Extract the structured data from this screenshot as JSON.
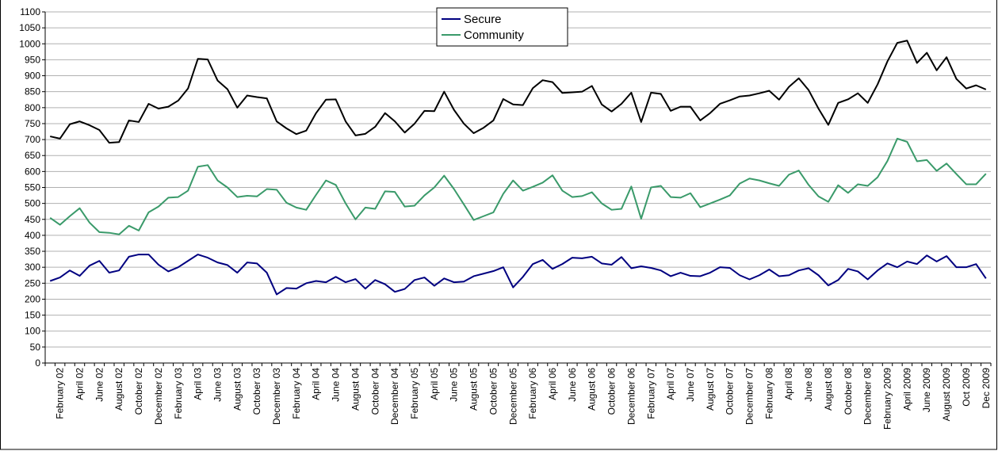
{
  "chart_data": {
    "type": "line",
    "categories": [
      null,
      "February 02",
      null,
      "April 02",
      null,
      "June 02",
      null,
      "August 02",
      null,
      "October 02",
      null,
      "December 02",
      null,
      "February 03",
      null,
      "April 03",
      null,
      "June 03",
      null,
      "August 03",
      null,
      "October 03",
      null,
      "December 03",
      null,
      "February 04",
      null,
      "April 04",
      null,
      "June 04",
      null,
      "August 04",
      null,
      "October 04",
      null,
      "December 04",
      null,
      "February 05",
      null,
      "April 05",
      null,
      "June 05",
      null,
      "August 05",
      null,
      "October 05",
      null,
      "December 05",
      null,
      "February 06",
      null,
      "April 06",
      null,
      "June 06",
      null,
      "August 06",
      null,
      "October 06",
      null,
      "December 06",
      null,
      "February 07",
      null,
      "April 07",
      null,
      "June 07",
      null,
      "August 07",
      null,
      "October 07",
      null,
      "December 07",
      null,
      "February 08",
      null,
      "April 08",
      null,
      "June 08",
      null,
      "August 08",
      null,
      "October 08",
      null,
      "December 08",
      null,
      "February 2009",
      null,
      "April 2009",
      null,
      "June 2009",
      null,
      "August 2009",
      null,
      "Oct 2009",
      null,
      "Dec 2009"
    ],
    "series": [
      {
        "color": "#000000",
        "values": [
          710,
          703,
          748,
          757,
          745,
          730,
          690,
          692,
          760,
          755,
          812,
          797,
          803,
          822,
          860,
          953,
          951,
          885,
          858,
          800,
          838,
          833,
          829,
          757,
          735,
          717,
          728,
          783,
          825,
          826,
          757,
          713,
          718,
          740,
          783,
          757,
          722,
          750,
          790,
          789,
          850,
          793,
          750,
          720,
          737,
          760,
          827,
          810,
          808,
          861,
          886,
          880,
          846,
          848,
          850,
          868,
          810,
          788,
          812,
          847,
          755,
          847,
          843,
          790,
          803,
          803,
          760,
          783,
          812,
          823,
          835,
          838,
          845,
          853,
          825,
          865,
          892,
          855,
          797,
          746,
          815,
          826,
          845,
          815,
          873,
          945,
          1003,
          1010,
          940,
          972,
          917,
          958,
          890,
          860,
          870,
          857
        ]
      },
      {
        "name": "Secure",
        "color": "#000080",
        "values": [
          257,
          268,
          290,
          273,
          305,
          320,
          283,
          290,
          333,
          340,
          340,
          308,
          287,
          300,
          320,
          340,
          330,
          315,
          307,
          283,
          315,
          312,
          283,
          215,
          235,
          233,
          250,
          257,
          253,
          270,
          253,
          263,
          233,
          260,
          247,
          223,
          232,
          260,
          268,
          242,
          265,
          253,
          255,
          272,
          280,
          288,
          300,
          237,
          270,
          310,
          323,
          295,
          310,
          330,
          328,
          333,
          312,
          308,
          332,
          297,
          303,
          298,
          290,
          272,
          283,
          273,
          272,
          283,
          300,
          298,
          275,
          262,
          275,
          293,
          272,
          275,
          290,
          297,
          275,
          243,
          260,
          295,
          287,
          262,
          290,
          312,
          300,
          318,
          310,
          337,
          318,
          335,
          300,
          300,
          310,
          265
        ]
      },
      {
        "name": "Community",
        "color": "#3a9a6a",
        "values": [
          455,
          433,
          460,
          485,
          440,
          410,
          408,
          403,
          430,
          415,
          472,
          490,
          518,
          520,
          540,
          615,
          620,
          572,
          550,
          520,
          524,
          522,
          545,
          543,
          502,
          487,
          480,
          527,
          572,
          558,
          500,
          450,
          487,
          483,
          538,
          536,
          490,
          493,
          525,
          550,
          587,
          545,
          497,
          448,
          460,
          472,
          530,
          572,
          540,
          552,
          565,
          588,
          540,
          520,
          523,
          535,
          500,
          480,
          483,
          553,
          452,
          550,
          555,
          520,
          518,
          532,
          488,
          500,
          512,
          525,
          562,
          578,
          572,
          563,
          555,
          590,
          603,
          558,
          522,
          505,
          557,
          533,
          560,
          555,
          582,
          633,
          703,
          693,
          632,
          636,
          602,
          625,
          592,
          560,
          560,
          593
        ]
      }
    ],
    "ylim": [
      0,
      1100
    ],
    "yticks": [
      0,
      50,
      100,
      150,
      200,
      250,
      300,
      350,
      400,
      450,
      500,
      550,
      600,
      650,
      700,
      750,
      800,
      850,
      900,
      950,
      1000,
      1050,
      1100
    ],
    "grid": true,
    "legend": "top"
  }
}
